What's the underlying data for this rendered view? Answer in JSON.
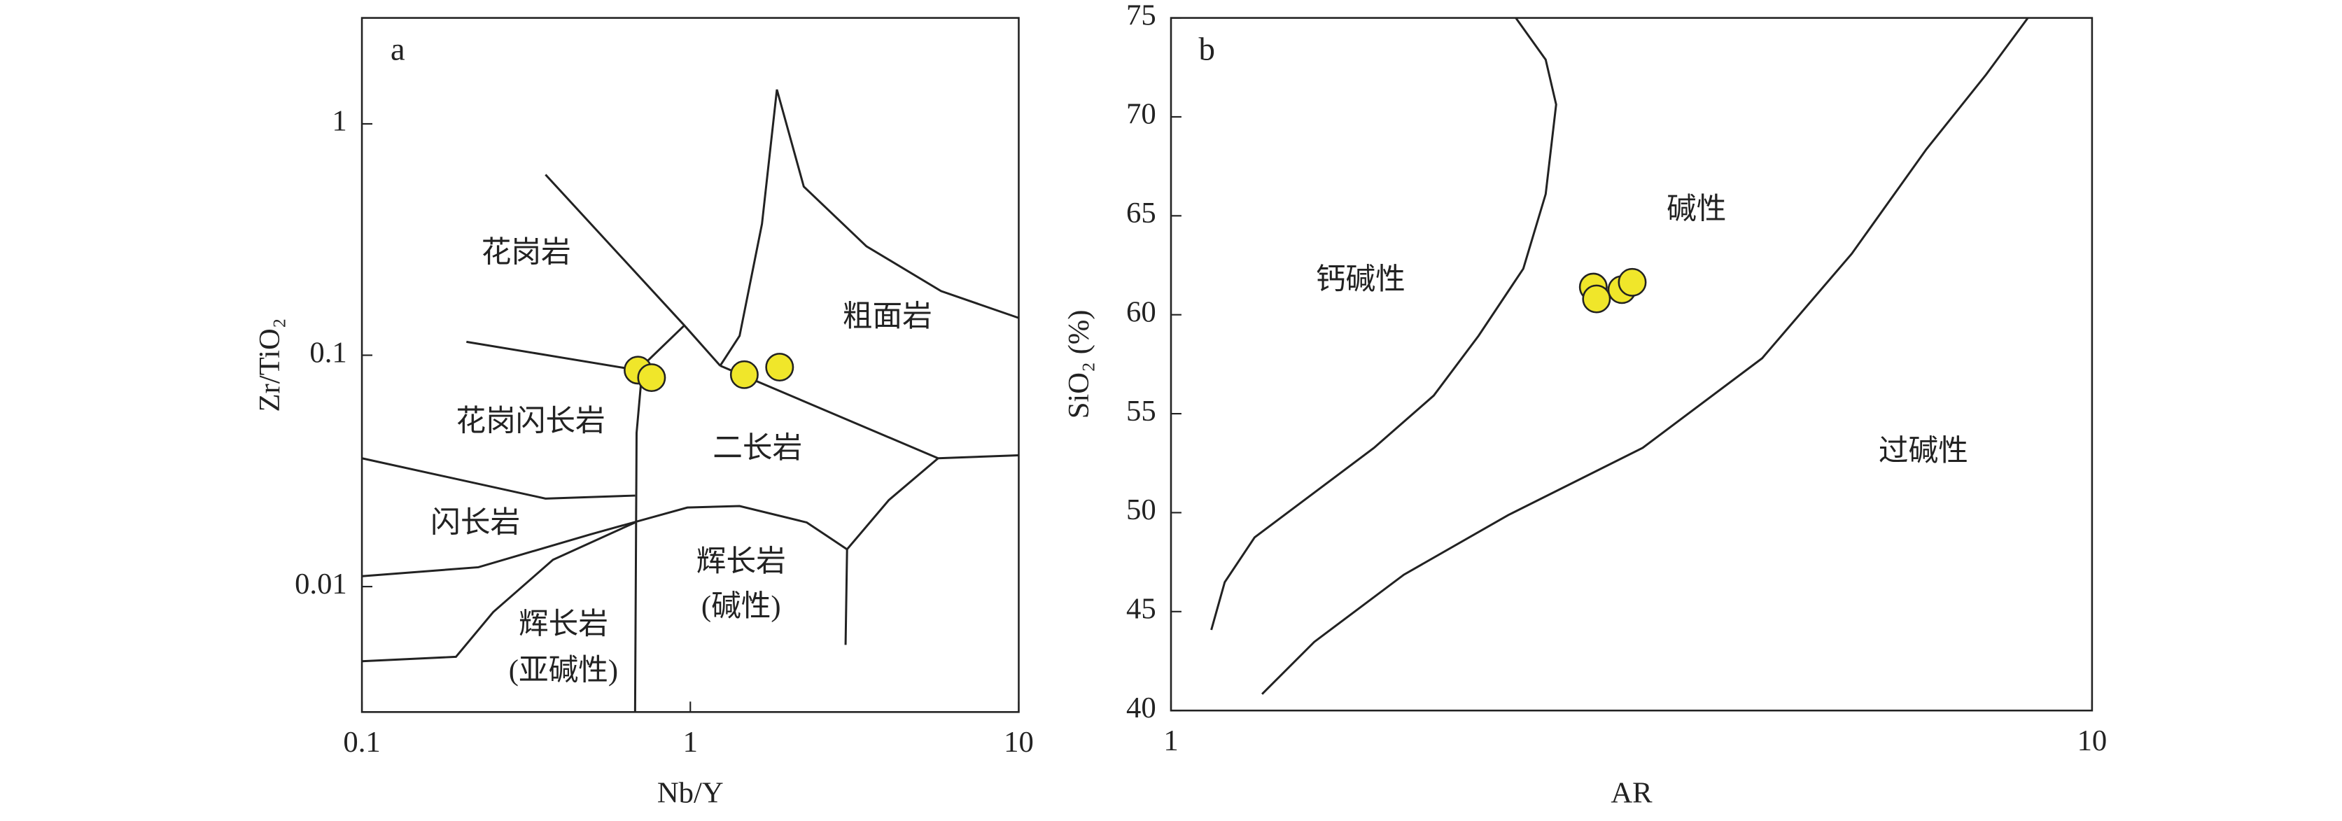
{
  "chart_data": [
    {
      "type": "scatter",
      "title": "a",
      "xlabel": "Nb/Y",
      "ylabel": "Zr/TiO₂",
      "x": [
        0.693,
        0.762,
        1.46,
        1.87
      ],
      "values": [
        0.0862,
        0.08,
        0.0824,
        0.0888
      ],
      "color": "#f0e62a",
      "xscale": "log",
      "yscale": "log",
      "xlim": [
        0.1,
        10
      ],
      "ylim": [
        0.00287,
        2.87
      ],
      "xticks": [
        0.1,
        1,
        10
      ],
      "yticks": [
        0.01,
        0.1,
        1
      ],
      "annotations": [
        "花岗岩",
        "粗面岩",
        "花岗闪长岩",
        "二长岩",
        "闪长岩",
        "辉长岩",
        "(碱性)",
        "辉长岩",
        "(亚碱性)"
      ]
    },
    {
      "type": "scatter",
      "title": "b",
      "xlabel": "AR",
      "ylabel": "SiO₂ (%)",
      "x": [
        2.874,
        2.897,
        3.087,
        3.168
      ],
      "values": [
        61.4,
        60.8,
        61.27,
        61.64
      ],
      "color": "#f0e62a",
      "xscale": "log",
      "yscale": "linear",
      "xlim": [
        1,
        10
      ],
      "ylim": [
        40,
        75
      ],
      "xticks": [
        1,
        10
      ],
      "yticks": [
        40,
        45,
        50,
        55,
        60,
        65,
        70,
        75
      ],
      "annotations": [
        "碱性",
        "钙碱性",
        "过碱性"
      ]
    }
  ]
}
